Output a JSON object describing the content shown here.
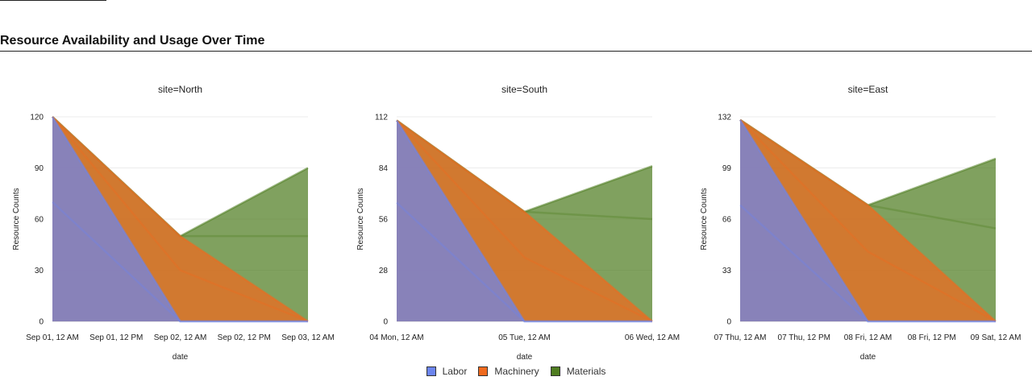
{
  "page": {
    "heading": "Resource Availability and Usage Over Time"
  },
  "legend": [
    {
      "label": "Labor",
      "color": "#6c85ee"
    },
    {
      "label": "Machinery",
      "color": "#f06a1e"
    },
    {
      "label": "Materials",
      "color": "#4f7d21"
    }
  ],
  "chart_data": [
    {
      "type": "area",
      "title": "site=North",
      "xlabel": "date",
      "ylabel": "Resource Counts",
      "x": [
        "Sep 01, 12 AM",
        "Sep 02, 12 AM",
        "Sep 03, 12 AM"
      ],
      "x_ticks": [
        "Sep 01, 12 AM",
        "Sep 01, 12 PM",
        "Sep 02, 12 AM",
        "Sep 02, 12 PM",
        "Sep 03, 12 AM"
      ],
      "ylim": [
        0,
        120
      ],
      "y_ticks": [
        0,
        30,
        60,
        90,
        120
      ],
      "series": [
        {
          "name": "Labor",
          "available": [
            120,
            0,
            0
          ],
          "used": [
            70,
            0,
            0
          ]
        },
        {
          "name": "Machinery",
          "available": [
            120,
            50,
            0
          ],
          "used": [
            120,
            30,
            0
          ]
        },
        {
          "name": "Materials",
          "available": [
            120,
            50,
            90
          ],
          "used": [
            120,
            50,
            50
          ]
        }
      ]
    },
    {
      "type": "area",
      "title": "site=South",
      "xlabel": "date",
      "ylabel": "Resource Counts",
      "x": [
        "04 Mon, 12 AM",
        "05 Tue, 12 AM",
        "06 Wed, 12 AM"
      ],
      "x_ticks": [
        "04 Mon, 12 AM",
        "05 Tue, 12 AM",
        "06 Wed, 12 AM"
      ],
      "ylim": [
        0,
        112
      ],
      "y_ticks": [
        0,
        28,
        56,
        84,
        112
      ],
      "series": [
        {
          "name": "Labor",
          "available": [
            110,
            0,
            0
          ],
          "used": [
            65,
            0,
            0
          ]
        },
        {
          "name": "Machinery",
          "available": [
            110,
            60,
            0
          ],
          "used": [
            110,
            35,
            0
          ]
        },
        {
          "name": "Materials",
          "available": [
            110,
            60,
            85
          ],
          "used": [
            110,
            60,
            56
          ]
        }
      ]
    },
    {
      "type": "area",
      "title": "site=East",
      "xlabel": "date",
      "ylabel": "Resource Counts",
      "x": [
        "07 Thu, 12 AM",
        "08 Fri, 12 AM",
        "09 Sat, 12 AM"
      ],
      "x_ticks": [
        "07 Thu, 12 AM",
        "07 Thu, 12 PM",
        "08 Fri, 12 AM",
        "08 Fri, 12 PM",
        "09 Sat, 12 AM"
      ],
      "ylim": [
        0,
        132
      ],
      "y_ticks": [
        0,
        33,
        66,
        99,
        132
      ],
      "series": [
        {
          "name": "Labor",
          "available": [
            130,
            0,
            0
          ],
          "used": [
            75,
            0,
            0
          ]
        },
        {
          "name": "Machinery",
          "available": [
            130,
            75,
            0
          ],
          "used": [
            130,
            45,
            0
          ]
        },
        {
          "name": "Materials",
          "available": [
            130,
            75,
            105
          ],
          "used": [
            130,
            75,
            60
          ]
        }
      ]
    }
  ]
}
